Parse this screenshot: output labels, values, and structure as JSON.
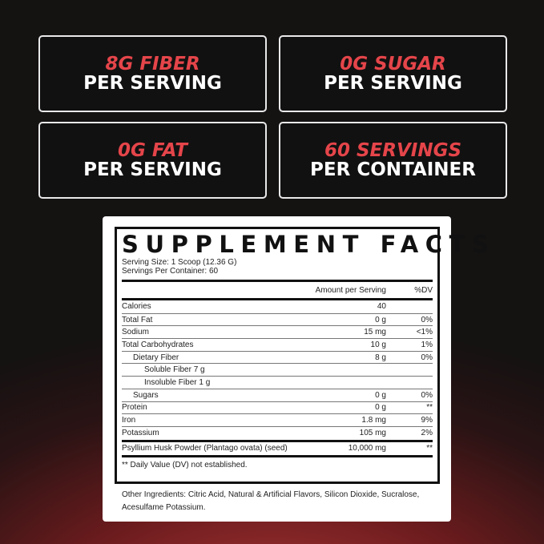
{
  "badges": [
    {
      "highlight": "8G FIBER",
      "text": "PER SERVING"
    },
    {
      "highlight": "0G SUGAR",
      "text": "PER SERVING"
    },
    {
      "highlight": "0G FAT",
      "text": "PER SERVING"
    },
    {
      "highlight": "60 SERVINGS",
      "text": "PER CONTAINER"
    }
  ],
  "facts": {
    "title": "SUPPLEMENT FACTS",
    "serving_size": "Serving Size: 1 Scoop (12.36 G)",
    "servings_per_container": "Servings Per Container: 60",
    "header_amount": "Amount per Serving",
    "header_dv": "%DV",
    "rows": [
      {
        "name": "Calories",
        "amount": "40",
        "dv": ""
      },
      {
        "name": "Total Fat",
        "amount": "0 g",
        "dv": "0%"
      },
      {
        "name": "Sodium",
        "amount": "15 mg",
        "dv": "<1%"
      },
      {
        "name": "Total Carbohydrates",
        "amount": "10 g",
        "dv": "1%"
      },
      {
        "name": "Dietary Fiber",
        "amount": "8 g",
        "dv": "0%"
      },
      {
        "name": "Soluble Fiber 7 g",
        "amount": "",
        "dv": ""
      },
      {
        "name": "Insoluble Fiber 1 g",
        "amount": "",
        "dv": ""
      },
      {
        "name": "Sugars",
        "amount": "0 g",
        "dv": "0%"
      },
      {
        "name": "Protein",
        "amount": "0 g",
        "dv": "**"
      },
      {
        "name": "Iron",
        "amount": "1.8 mg",
        "dv": "9%"
      },
      {
        "name": "Potassium",
        "amount": "105 mg",
        "dv": "2%"
      }
    ],
    "blend": {
      "name": "Psyllium Husk Powder (Plantago ovata) (seed)",
      "amount": "10,000 mg",
      "dv": "**"
    },
    "footnote": "** Daily Value (DV) not established."
  },
  "other_ingredients": "Other Ingredients: Citric Acid, Natural & Artificial Flavors, Silicon Dioxide, Sucralose, Acesulfame Potassium.",
  "colors": {
    "accent": "#e5454a"
  }
}
